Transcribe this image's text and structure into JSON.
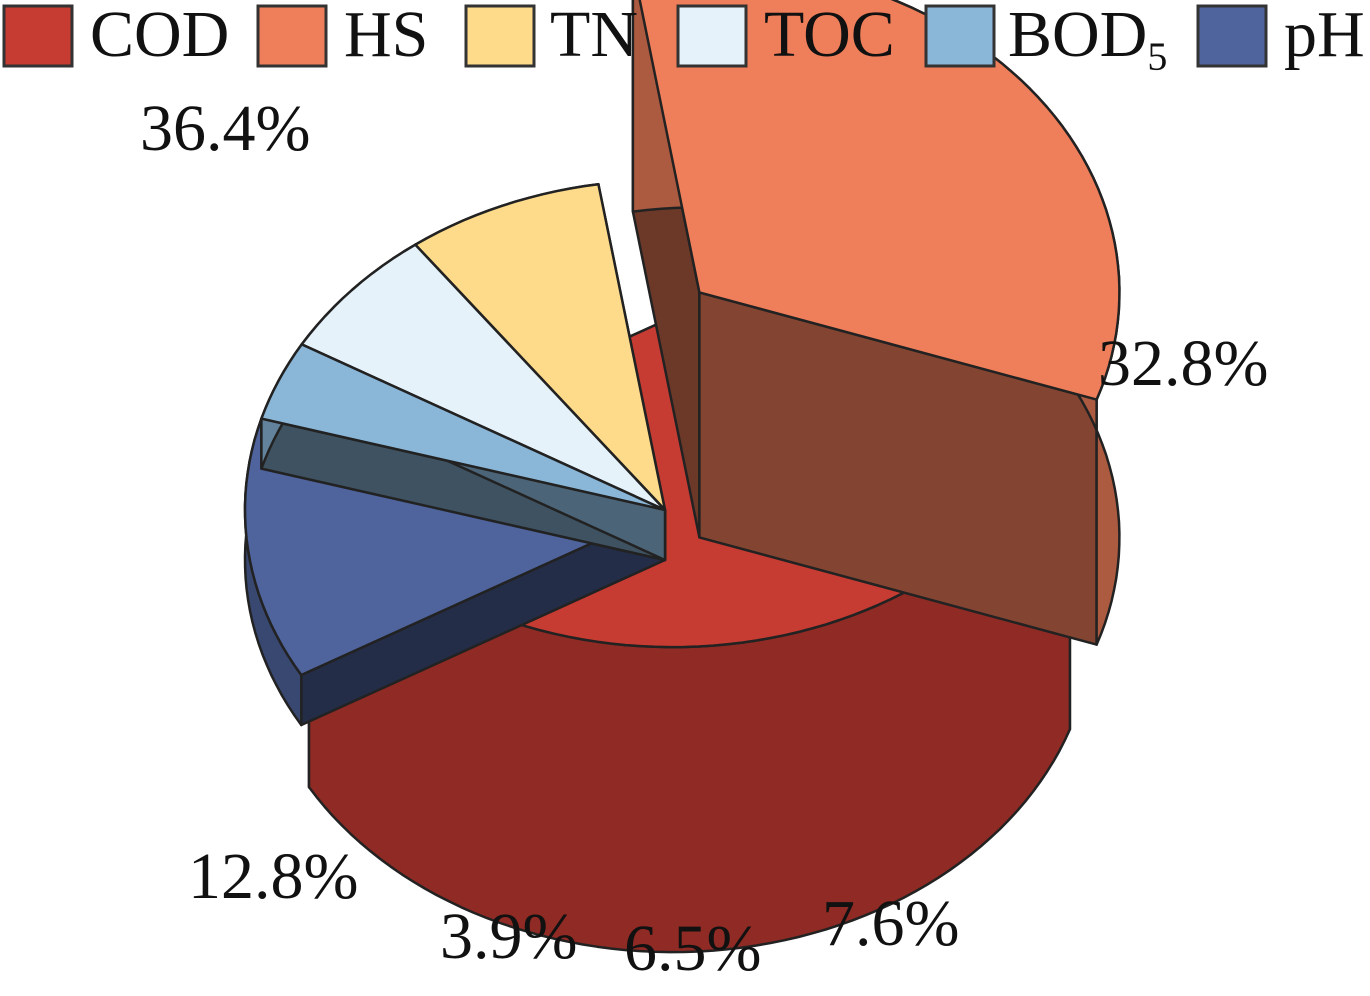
{
  "chart_data": {
    "type": "pie",
    "variant": "3d-exploded",
    "title": "",
    "legend_position": "top",
    "slices": [
      {
        "key": "cod",
        "label": "COD",
        "value": 36.4,
        "value_label": "36.4%",
        "color": "#C63B32"
      },
      {
        "key": "hs",
        "label": "HS",
        "value": 32.8,
        "value_label": "32.8%",
        "color": "#EF7E5A"
      },
      {
        "key": "tn",
        "label": "TN",
        "value": 7.6,
        "value_label": "7.6%",
        "color": "#FDDB8A"
      },
      {
        "key": "toc",
        "label": "TOC",
        "value": 6.5,
        "value_label": "6.5%",
        "color": "#E6F2FA"
      },
      {
        "key": "bod5",
        "label": "BOD",
        "label_subscript": "5",
        "value": 3.9,
        "value_label": "3.9%",
        "color": "#8AB6D8"
      },
      {
        "key": "ph",
        "label": "pH",
        "value": 12.8,
        "value_label": "12.8%",
        "color": "#4F649D"
      }
    ]
  }
}
